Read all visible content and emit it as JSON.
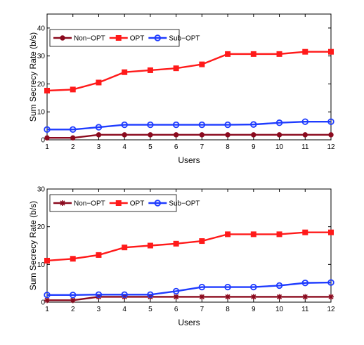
{
  "chart_data": [
    {
      "type": "line",
      "xlabel": "Users",
      "ylabel": "Sum Secrecy Rate (b/s)",
      "x": [
        1,
        2,
        3,
        4,
        5,
        6,
        7,
        8,
        9,
        10,
        11,
        12
      ],
      "xlim": [
        1,
        12
      ],
      "ylim": [
        0,
        45
      ],
      "yticks": [
        0,
        10,
        20,
        30,
        40
      ],
      "grid": false,
      "legend": "top-left",
      "series": [
        {
          "name": "Non−OPT",
          "color": "#8b0a1e",
          "marker": "dot",
          "values": [
            0.7,
            0.7,
            1.8,
            1.8,
            1.8,
            1.8,
            1.8,
            1.8,
            1.8,
            1.8,
            1.8,
            1.8
          ]
        },
        {
          "name": "OPT",
          "color": "#ff1a1a",
          "marker": "square",
          "values": [
            17.6,
            18.0,
            20.5,
            24.2,
            24.9,
            25.6,
            27.0,
            30.7,
            30.7,
            30.7,
            31.5,
            31.5
          ]
        },
        {
          "name": "Sub−OPT",
          "color": "#1f3cff",
          "marker": "circle",
          "values": [
            3.7,
            3.7,
            4.5,
            5.4,
            5.4,
            5.4,
            5.4,
            5.4,
            5.5,
            6.1,
            6.5,
            6.5
          ]
        }
      ]
    },
    {
      "type": "line",
      "xlabel": "Users",
      "ylabel": "Sum Secrecy Rate (b/s)",
      "x": [
        1,
        2,
        3,
        4,
        5,
        6,
        7,
        8,
        9,
        10,
        11,
        12
      ],
      "xlim": [
        1,
        12
      ],
      "ylim": [
        0,
        30
      ],
      "yticks": [
        0,
        10,
        20,
        30
      ],
      "grid": false,
      "legend": "top-left",
      "series": [
        {
          "name": "Non−OPT",
          "color": "#8b0a1e",
          "marker": "star",
          "values": [
            0.5,
            0.5,
            1.4,
            1.4,
            1.4,
            1.4,
            1.4,
            1.4,
            1.4,
            1.4,
            1.4,
            1.4
          ]
        },
        {
          "name": "OPT",
          "color": "#ff1a1a",
          "marker": "square",
          "values": [
            11.0,
            11.5,
            12.5,
            14.5,
            15.0,
            15.5,
            16.2,
            18.0,
            18.0,
            18.0,
            18.5,
            18.5
          ]
        },
        {
          "name": "Sub−OPT",
          "color": "#1f3cff",
          "marker": "circle",
          "values": [
            1.9,
            1.9,
            2.0,
            2.0,
            2.0,
            2.9,
            4.0,
            4.0,
            4.0,
            4.4,
            5.1,
            5.2
          ]
        }
      ]
    }
  ]
}
